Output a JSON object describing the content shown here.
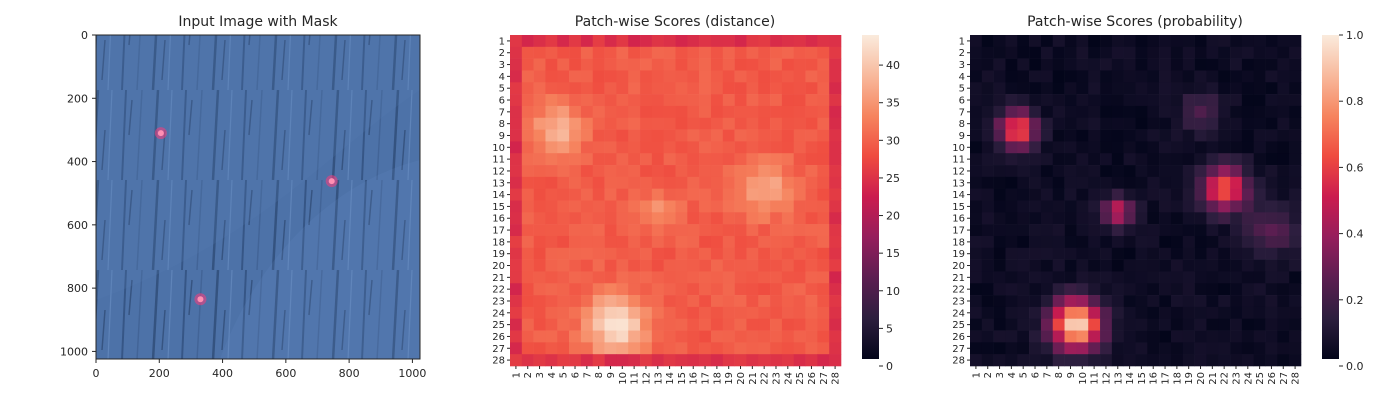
{
  "chart_data": [
    {
      "type": "image",
      "title": "Input Image with Mask",
      "x_ticks": [
        "0",
        "200",
        "400",
        "600",
        "800",
        "1000"
      ],
      "y_ticks": [
        "0",
        "200",
        "400",
        "600",
        "800",
        "1000"
      ],
      "xlim": [
        0,
        1024
      ],
      "ylim": [
        1024,
        0
      ],
      "background_color": "#4a6fa5",
      "mask_color": "#ff3b7a",
      "mask_points": [
        {
          "x": 205,
          "y": 310
        },
        {
          "x": 745,
          "y": 462
        },
        {
          "x": 330,
          "y": 835
        }
      ]
    },
    {
      "type": "heatmap",
      "title": "Patch-wise Scores (distance)",
      "rows": 28,
      "cols": 28,
      "row_labels": [
        "1",
        "2",
        "3",
        "4",
        "5",
        "6",
        "7",
        "8",
        "9",
        "10",
        "11",
        "12",
        "13",
        "14",
        "15",
        "16",
        "17",
        "18",
        "19",
        "20",
        "21",
        "22",
        "23",
        "24",
        "25",
        "26",
        "27",
        "28"
      ],
      "col_labels": [
        "1",
        "2",
        "3",
        "4",
        "5",
        "6",
        "7",
        "8",
        "9",
        "10",
        "11",
        "12",
        "13",
        "14",
        "15",
        "16",
        "17",
        "18",
        "19",
        "20",
        "21",
        "22",
        "23",
        "24",
        "25",
        "26",
        "27",
        "28"
      ],
      "colorbar_ticks": [
        "0",
        "5",
        "10",
        "15",
        "20",
        "25",
        "30",
        "35",
        "40"
      ],
      "vmin": 0,
      "vmax": 44,
      "colormap": "rocket",
      "border_value": 23,
      "base_value": 29,
      "hotspots": [
        {
          "row": 8.5,
          "col": 4.5,
          "peak": 38,
          "sigma": 1.5
        },
        {
          "row": 13.5,
          "col": 22,
          "peak": 37,
          "sigma": 1.6
        },
        {
          "row": 25,
          "col": 9.5,
          "peak": 43,
          "sigma": 1.8
        },
        {
          "row": 15.5,
          "col": 13,
          "peak": 34,
          "sigma": 1.2
        }
      ]
    },
    {
      "type": "heatmap",
      "title": "Patch-wise Scores (probability)",
      "rows": 28,
      "cols": 28,
      "row_labels": [
        "1",
        "2",
        "3",
        "4",
        "5",
        "6",
        "7",
        "8",
        "9",
        "10",
        "11",
        "12",
        "13",
        "14",
        "15",
        "16",
        "17",
        "18",
        "19",
        "20",
        "21",
        "22",
        "23",
        "24",
        "25",
        "26",
        "27",
        "28"
      ],
      "col_labels": [
        "1",
        "2",
        "3",
        "4",
        "5",
        "6",
        "7",
        "8",
        "9",
        "10",
        "11",
        "12",
        "13",
        "14",
        "15",
        "16",
        "17",
        "18",
        "19",
        "20",
        "21",
        "22",
        "23",
        "24",
        "25",
        "26",
        "27",
        "28"
      ],
      "colorbar_ticks": [
        "0.0",
        "0.2",
        "0.4",
        "0.6",
        "0.8",
        "1.0"
      ],
      "vmin": 0,
      "vmax": 1,
      "colormap": "rocket",
      "base_value": 0.03,
      "hotspots": [
        {
          "row": 8.5,
          "col": 4.5,
          "peak": 0.66,
          "sigma": 1.1
        },
        {
          "row": 13.5,
          "col": 22,
          "peak": 0.68,
          "sigma": 1.3
        },
        {
          "row": 25,
          "col": 9.5,
          "peak": 0.95,
          "sigma": 1.5
        },
        {
          "row": 15.5,
          "col": 13,
          "peak": 0.48,
          "sigma": 0.9
        },
        {
          "row": 7,
          "col": 20,
          "peak": 0.22,
          "sigma": 1.2
        },
        {
          "row": 17,
          "col": 26,
          "peak": 0.22,
          "sigma": 1.6
        }
      ]
    }
  ]
}
